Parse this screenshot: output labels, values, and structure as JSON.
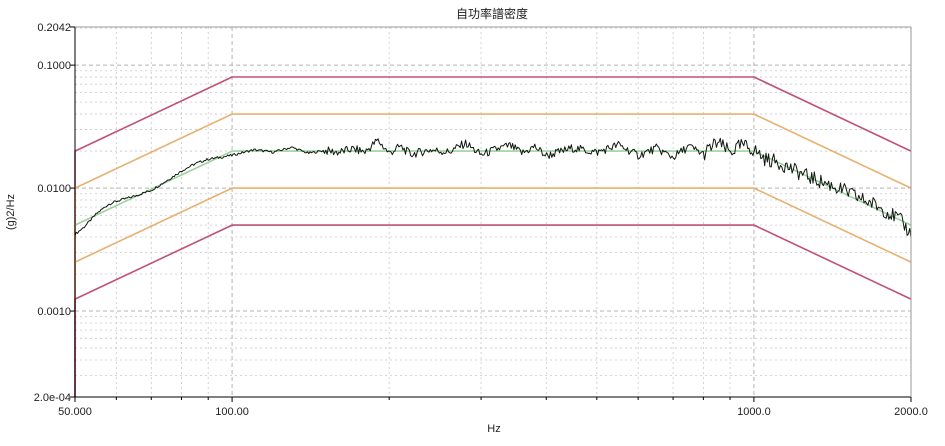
{
  "chart_data": {
    "type": "line",
    "title": "自功率譜密度",
    "xlabel": "Hz",
    "ylabel": "(g)2/Hz",
    "x_scale": "log",
    "y_scale": "log",
    "xlim": [
      50,
      2000
    ],
    "ylim": [
      0.0002,
      0.2042
    ],
    "x_ticks": [
      50,
      100,
      1000,
      2000
    ],
    "x_tick_labels": [
      "50.000",
      "100.00",
      "1000.0",
      "2000.0"
    ],
    "y_ticks": [
      0.0002,
      0.001,
      0.01,
      0.1,
      0.2042
    ],
    "y_tick_labels": [
      "2.0e-04",
      "0.0010",
      "0.0100",
      "0.1000",
      "0.2042"
    ],
    "grid": true,
    "colors": {
      "abort": "#c0507a",
      "alarm": "#e8b070",
      "reference": "#9ed39e",
      "measured": "#101810",
      "grid": "#c8c8c8",
      "axis": "#000000"
    },
    "series": [
      {
        "role": "abort-upper",
        "x": [
          50,
          50,
          100,
          1000,
          2000
        ],
        "y": [
          0.0002,
          0.02,
          0.08,
          0.08,
          0.02
        ]
      },
      {
        "role": "alarm-upper",
        "x": [
          50,
          50,
          100,
          1000,
          2000
        ],
        "y": [
          0.0012,
          0.01,
          0.04,
          0.04,
          0.01
        ]
      },
      {
        "role": "reference",
        "x": [
          50,
          100,
          1000,
          2000
        ],
        "y": [
          0.005,
          0.02,
          0.02,
          0.005
        ]
      },
      {
        "role": "alarm-lower",
        "x": [
          50,
          100,
          1000,
          2000
        ],
        "y": [
          0.0025,
          0.01,
          0.01,
          0.0025
        ]
      },
      {
        "role": "abort-lower",
        "x": [
          50,
          50,
          100,
          1000,
          2000
        ],
        "y": [
          0.0002,
          0.00125,
          0.005,
          0.005,
          0.00125
        ]
      },
      {
        "role": "measured",
        "x": [
          50,
          52,
          55,
          58,
          60,
          65,
          70,
          75,
          80,
          85,
          90,
          95,
          100,
          110,
          120,
          130,
          140,
          150,
          160,
          170,
          180,
          190,
          200,
          210,
          220,
          240,
          260,
          280,
          300,
          320,
          340,
          360,
          380,
          400,
          450,
          500,
          550,
          600,
          650,
          700,
          750,
          800,
          850,
          900,
          950,
          1000,
          1050,
          1100,
          1150,
          1200,
          1300,
          1400,
          1500,
          1600,
          1700,
          1800,
          1900,
          2000
        ],
        "y": [
          0.0042,
          0.0048,
          0.0062,
          0.0074,
          0.0078,
          0.0086,
          0.0096,
          0.0115,
          0.0138,
          0.0158,
          0.0172,
          0.0178,
          0.0185,
          0.0205,
          0.0196,
          0.0215,
          0.0192,
          0.0202,
          0.0195,
          0.0208,
          0.0197,
          0.0245,
          0.0192,
          0.0218,
          0.0188,
          0.0205,
          0.0196,
          0.0232,
          0.0186,
          0.0206,
          0.0222,
          0.0192,
          0.0218,
          0.0183,
          0.0212,
          0.0195,
          0.0225,
          0.0184,
          0.0211,
          0.0178,
          0.0218,
          0.0189,
          0.0235,
          0.0196,
          0.0224,
          0.0205,
          0.0172,
          0.0165,
          0.0152,
          0.0138,
          0.0119,
          0.0106,
          0.0094,
          0.0082,
          0.0074,
          0.0064,
          0.0056,
          0.0042
        ]
      }
    ]
  }
}
